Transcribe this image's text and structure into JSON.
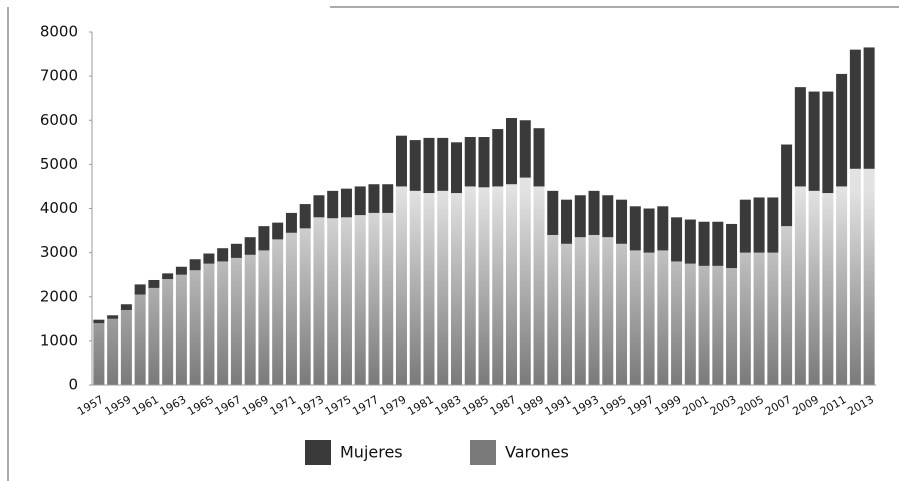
{
  "chart_data": {
    "type": "stacked_bar",
    "categories": [
      "1957",
      null,
      "1959",
      null,
      "1961",
      null,
      "1963",
      null,
      "1965",
      null,
      "1967",
      null,
      "1969",
      null,
      "1971",
      null,
      "1973",
      null,
      "1975",
      null,
      "1977",
      null,
      "1979",
      null,
      "1981",
      null,
      "1983",
      null,
      "1985",
      null,
      "1987",
      null,
      "1989",
      null,
      "1991",
      null,
      "1993",
      null,
      "1995",
      null,
      "1997",
      null,
      "1999",
      null,
      "2001",
      null,
      "2003",
      null,
      "2005",
      null,
      "2007",
      null,
      "2009",
      null,
      "2011",
      null,
      "2013"
    ],
    "series": [
      {
        "name": "Mujeres",
        "color": "#3a3a3a",
        "values": [
          80,
          80,
          130,
          230,
          180,
          130,
          180,
          250,
          230,
          300,
          320,
          400,
          550,
          380,
          450,
          550,
          500,
          620,
          650,
          650,
          650,
          650,
          1150,
          1150,
          1250,
          1200,
          1150,
          1120,
          1140,
          1300,
          1500,
          1300,
          1320,
          1000,
          1000,
          950,
          1000,
          950,
          1000,
          1000,
          1000,
          1000,
          1000,
          1000,
          1000,
          1000,
          1000,
          1200,
          1250,
          1250,
          1850,
          2250,
          2250,
          2300,
          2550,
          2700,
          2750
        ]
      },
      {
        "name": "Varones",
        "color": "#7a7a7a",
        "values": [
          1400,
          1500,
          1700,
          2050,
          2200,
          2400,
          2500,
          2600,
          2750,
          2800,
          2880,
          2950,
          3050,
          3300,
          3450,
          3550,
          3800,
          3780,
          3800,
          3850,
          3900,
          3900,
          4500,
          4400,
          4350,
          4400,
          4350,
          4500,
          4480,
          4500,
          4550,
          4700,
          4500,
          3400,
          3200,
          3350,
          3400,
          3350,
          3200,
          3050,
          3000,
          3050,
          2800,
          2750,
          2700,
          2700,
          2650,
          3000,
          3000,
          3000,
          3600,
          4500,
          4400,
          4350,
          4500,
          4900,
          4900
        ]
      }
    ],
    "ylim": [
      0,
      8000
    ],
    "yticks": [
      0,
      1000,
      2000,
      3000,
      4000,
      5000,
      6000,
      7000,
      8000
    ],
    "legend": "bottom"
  }
}
